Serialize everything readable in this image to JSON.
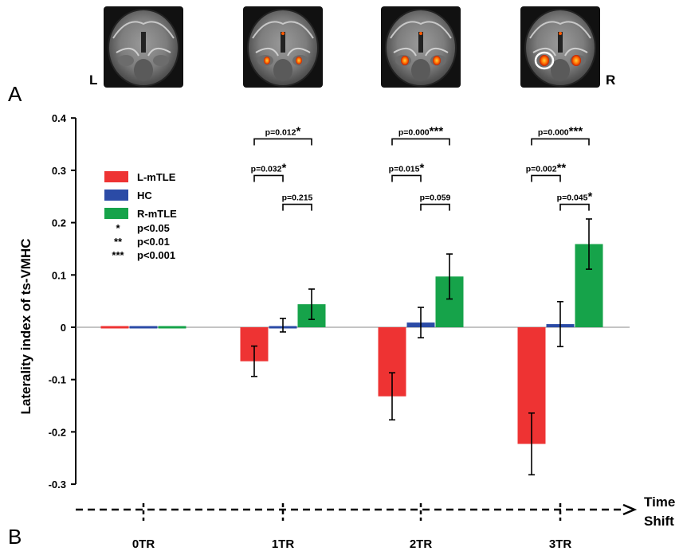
{
  "panels": {
    "a": "A",
    "b": "B"
  },
  "brain_row": {
    "left_label": "L",
    "right_label": "R"
  },
  "chart_data": {
    "type": "bar",
    "categories": [
      "0TR",
      "1TR",
      "2TR",
      "3TR"
    ],
    "ylabel": "Laterality index of ts-VMHC",
    "xlabel_lines": [
      "Time",
      "Shift"
    ],
    "ylim": [
      -0.35,
      0.4
    ],
    "yticks": [
      -0.3,
      -0.2,
      -0.1,
      0,
      0.1,
      0.2,
      0.3,
      0.4
    ],
    "ytick_labels": [
      "-0.3",
      "-0.2",
      "-0.1",
      "0",
      "0.1",
      "0.2",
      "0.3",
      "0.4"
    ],
    "series": [
      {
        "name": "L-mTLE",
        "color": "#ee3333",
        "values": [
          0.0,
          -0.065,
          -0.132,
          -0.223
        ],
        "errors": [
          0.0,
          0.029,
          0.045,
          0.059
        ]
      },
      {
        "name": "HC",
        "color": "#2b4ba6",
        "values": [
          0.0,
          0.004,
          0.009,
          0.006
        ],
        "errors": [
          0.0,
          0.013,
          0.029,
          0.043
        ]
      },
      {
        "name": "R-mTLE",
        "color": "#16a34a",
        "values": [
          0.0,
          0.044,
          0.097,
          0.159
        ],
        "errors": [
          0.0,
          0.029,
          0.043,
          0.048
        ]
      }
    ],
    "legend_placement": "top-left",
    "significance_legend": [
      {
        "stars": "*",
        "text": "p<0.05"
      },
      {
        "stars": "**",
        "text": "p<0.01"
      },
      {
        "stars": "***",
        "text": "p<0.001"
      }
    ],
    "annotations": [
      {
        "category": 1,
        "from": 0,
        "to": 2,
        "level": 0.36,
        "text": "p=0.012",
        "stars": "*"
      },
      {
        "category": 1,
        "from": 0,
        "to": 1,
        "level": 0.29,
        "text": "p=0.032",
        "stars": "*"
      },
      {
        "category": 1,
        "from": 1,
        "to": 2,
        "level": 0.235,
        "text": "p=0.215",
        "stars": ""
      },
      {
        "category": 2,
        "from": 0,
        "to": 2,
        "level": 0.36,
        "text": "p=0.000",
        "stars": "***"
      },
      {
        "category": 2,
        "from": 0,
        "to": 1,
        "level": 0.29,
        "text": "p=0.015",
        "stars": "*"
      },
      {
        "category": 2,
        "from": 1,
        "to": 2,
        "level": 0.235,
        "text": "p=0.059",
        "stars": ""
      },
      {
        "category": 3,
        "from": 0,
        "to": 2,
        "level": 0.36,
        "text": "p=0.000",
        "stars": "***"
      },
      {
        "category": 3,
        "from": 0,
        "to": 1,
        "level": 0.29,
        "text": "p=0.002",
        "stars": "**"
      },
      {
        "category": 3,
        "from": 1,
        "to": 2,
        "level": 0.235,
        "text": "p=0.045",
        "stars": "*"
      }
    ]
  }
}
